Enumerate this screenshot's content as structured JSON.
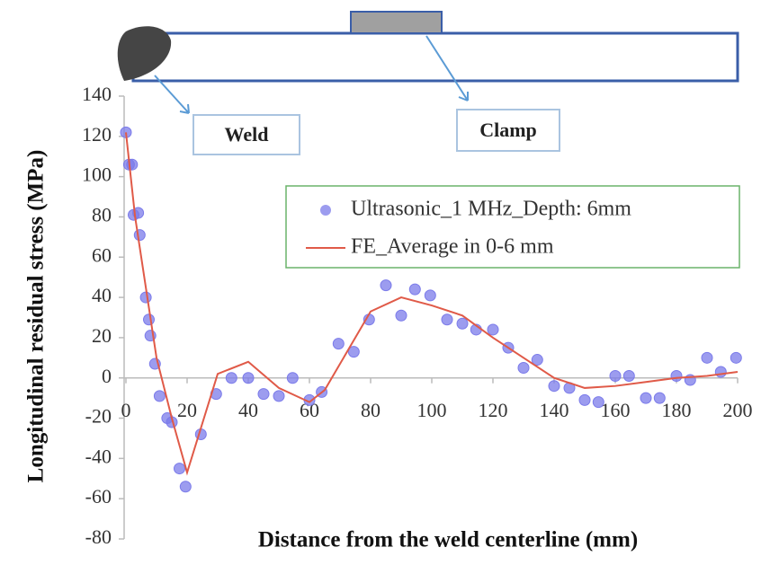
{
  "chart_data": {
    "type": "scatter",
    "annotations": [
      "Weld",
      "Clamp"
    ],
    "xlabel": "Distance from the weld centerline (mm)",
    "ylabel": "Longitudinal residual stress (MPa)",
    "xlim": [
      0,
      200
    ],
    "ylim": [
      -80,
      140
    ],
    "xticks": [
      0,
      20,
      40,
      60,
      80,
      100,
      120,
      140,
      160,
      180,
      200
    ],
    "yticks": [
      -80,
      -60,
      -40,
      -20,
      0,
      20,
      40,
      60,
      80,
      100,
      120,
      140
    ],
    "legend": "upper right",
    "series": [
      {
        "name": "Ultrasonic_1 MHz_Depth: 6mm",
        "mode": "markers",
        "color": "#7b7bea",
        "x": [
          0,
          1,
          2,
          2.5,
          4,
          4.5,
          6.5,
          7.5,
          8,
          9.5,
          11,
          13.5,
          15,
          17.5,
          19.5,
          24.5,
          29.5,
          34.5,
          40,
          45,
          50,
          54.5,
          60,
          64,
          69.5,
          74.5,
          79.5,
          85,
          90,
          94.5,
          99.5,
          105,
          110,
          114.5,
          120,
          125,
          130,
          134.5,
          140,
          145,
          150,
          154.5,
          160,
          164.5,
          170,
          174.5,
          180,
          184.5,
          190,
          194.5,
          199.5
        ],
        "values": [
          122,
          106,
          106,
          81,
          82,
          71,
          40,
          29,
          21,
          7,
          -9,
          -20,
          -22,
          -45,
          -54,
          -28,
          -8,
          0,
          0,
          -8,
          -9,
          0,
          -11,
          -7,
          17,
          13,
          29,
          46,
          31,
          44,
          41,
          29,
          27,
          24,
          24,
          15,
          5,
          9,
          -4,
          -5,
          -11,
          -12,
          1,
          1,
          -10,
          -10,
          1,
          -1,
          10,
          3,
          10
        ]
      },
      {
        "name": "FE_Average in 0-6 mm",
        "mode": "line",
        "color": "#e05a48",
        "x": [
          0,
          3,
          10,
          15,
          20,
          30,
          40,
          50,
          60,
          65,
          80,
          90,
          100,
          110,
          120,
          130,
          140,
          150,
          160,
          170,
          180,
          190,
          200
        ],
        "values": [
          122,
          80,
          10,
          -20,
          -47,
          2,
          8,
          -5,
          -12,
          -6,
          33,
          40,
          36,
          31,
          20,
          10,
          0,
          -5,
          -4,
          -2,
          0,
          1,
          3
        ]
      }
    ]
  }
}
